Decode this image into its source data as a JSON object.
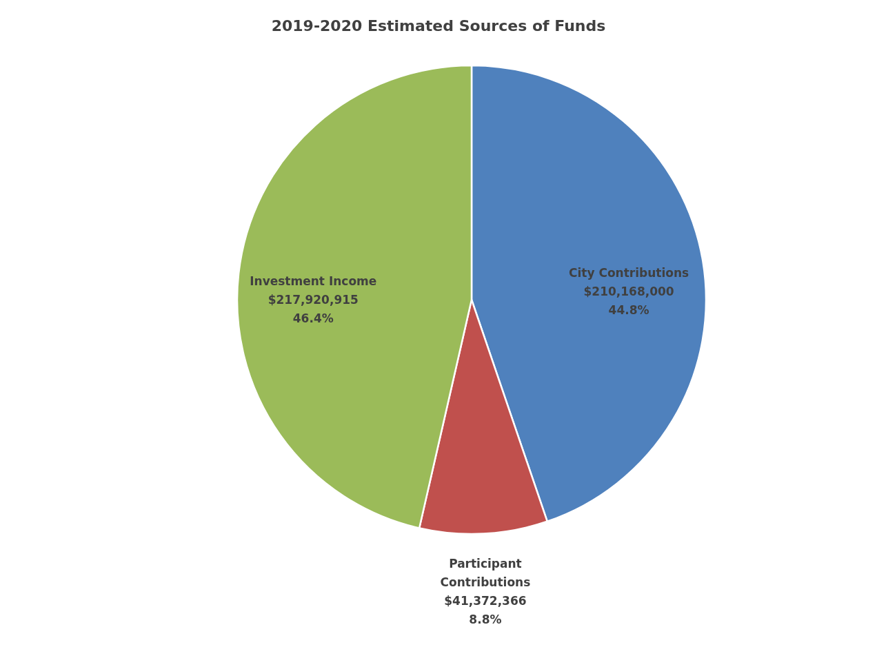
{
  "chart_data": {
    "type": "pie",
    "title": "2019-2020 Estimated Sources of Funds",
    "categories": [
      "City Contributions",
      "Participant Contributions",
      "Investment Income"
    ],
    "values": [
      210168000,
      41372366,
      217920915
    ],
    "value_labels": [
      "$210,168,000\n44.8%",
      "$41,372,366\n8.8%",
      "$217,920,915\n46.4%"
    ],
    "colors": [
      "#4f81bd",
      "#c0504d",
      "#9bbb59"
    ],
    "legend": false
  }
}
